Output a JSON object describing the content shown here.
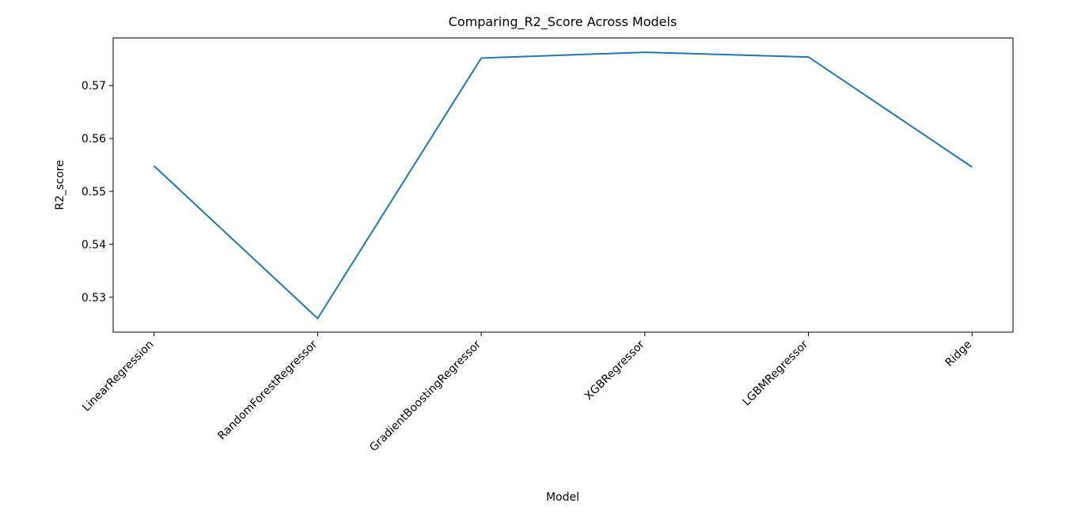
{
  "chart_data": {
    "type": "line",
    "title": "Comparing_R2_Score Across Models",
    "x_label": "Model",
    "y_label": "R2_score",
    "categories": [
      "LinearRegression",
      "RandomForestRegressor",
      "GradientBoostingRegressor",
      "XGBRegressor",
      "LGBMRegressor",
      "Ridge"
    ],
    "values": [
      0.5548,
      0.526,
      0.5752,
      0.5763,
      0.5754,
      0.5546
    ],
    "color": "#1f77b4",
    "ylim": [
      0.5234,
      0.579
    ],
    "yticks": [
      0.53,
      0.54,
      0.55,
      0.56,
      0.57
    ]
  }
}
